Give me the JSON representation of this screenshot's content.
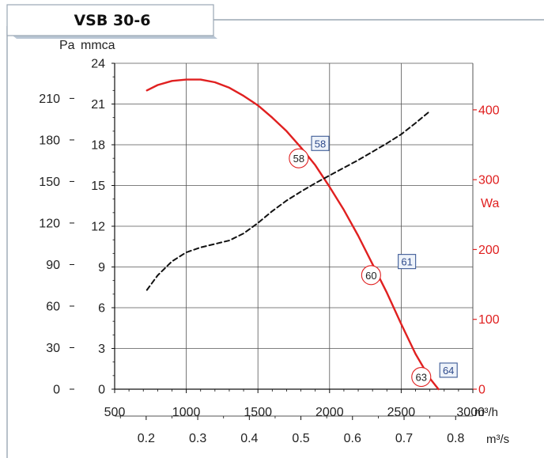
{
  "chart_data": {
    "type": "line",
    "title": "VSB 30-6",
    "left_axis": {
      "unit_pa": "Pa",
      "unit_mmca": "mmca",
      "pa_ticks": [
        "0",
        "30",
        "60",
        "90",
        "120",
        "150",
        "180",
        "210"
      ],
      "mmca_ticks": [
        "0",
        "3",
        "6",
        "9",
        "12",
        "15",
        "18",
        "21",
        "24"
      ],
      "mmca_range": [
        0,
        24
      ]
    },
    "right_axis": {
      "unit": "Wa",
      "ticks": [
        "0",
        "100",
        "200",
        "300",
        "400"
      ],
      "range": [
        0,
        466.67
      ]
    },
    "x_axis": {
      "unit": "m³/h",
      "range": [
        500,
        3000
      ],
      "ticks": [
        "500",
        "1000",
        "1500",
        "2000",
        "2500",
        "3000"
      ]
    },
    "x_axis_secondary": {
      "unit": "m³/s",
      "ticks": [
        "0.2",
        "0.3",
        "0.4",
        "0.5",
        "0.6",
        "0.7",
        "0.8"
      ]
    },
    "grid": true,
    "series": [
      {
        "axis": "left",
        "style": "solid",
        "color": "#e02020",
        "points": [
          [
            725,
            22.0
          ],
          [
            800,
            22.4
          ],
          [
            900,
            22.7
          ],
          [
            1000,
            22.8
          ],
          [
            1100,
            22.8
          ],
          [
            1200,
            22.6
          ],
          [
            1300,
            22.2
          ],
          [
            1400,
            21.6
          ],
          [
            1500,
            20.9
          ],
          [
            1600,
            20.0
          ],
          [
            1700,
            19.0
          ],
          [
            1800,
            17.8
          ],
          [
            1900,
            16.5
          ],
          [
            2000,
            14.9
          ],
          [
            2100,
            13.2
          ],
          [
            2200,
            11.3
          ],
          [
            2300,
            9.2
          ],
          [
            2400,
            7.1
          ],
          [
            2500,
            4.8
          ],
          [
            2600,
            2.6
          ],
          [
            2700,
            0.8
          ],
          [
            2760,
            0.0
          ]
        ]
      },
      {
        "axis": "right",
        "style": "dashed",
        "color": "#111111",
        "points": [
          [
            725,
            142
          ],
          [
            800,
            163
          ],
          [
            900,
            183
          ],
          [
            1000,
            196
          ],
          [
            1100,
            203
          ],
          [
            1200,
            208
          ],
          [
            1300,
            213
          ],
          [
            1400,
            223
          ],
          [
            1500,
            238
          ],
          [
            1600,
            255
          ],
          [
            1700,
            270
          ],
          [
            1800,
            283
          ],
          [
            1900,
            295
          ],
          [
            2000,
            306
          ],
          [
            2100,
            317
          ],
          [
            2200,
            328
          ],
          [
            2300,
            340
          ],
          [
            2400,
            352
          ],
          [
            2500,
            365
          ],
          [
            2600,
            381
          ],
          [
            2700,
            398
          ]
        ]
      }
    ],
    "annotations": {
      "squares": [
        {
          "text": "58",
          "x": 1935,
          "y": 18.1
        },
        {
          "text": "61",
          "x": 2540,
          "y": 9.4
        },
        {
          "text": "64",
          "x": 2830,
          "y": 1.4
        }
      ],
      "circles": [
        {
          "text": "58",
          "x": 1785,
          "y": 17.0
        },
        {
          "text": "60",
          "x": 2290,
          "y": 8.4
        },
        {
          "text": "63",
          "x": 2640,
          "y": 0.9
        }
      ]
    },
    "colors": {
      "curve": "#e02020",
      "right_axis": "#e02020",
      "square_border": "#3c5a96",
      "square_text": "#2f4b8c",
      "circle": "#e02020"
    }
  }
}
